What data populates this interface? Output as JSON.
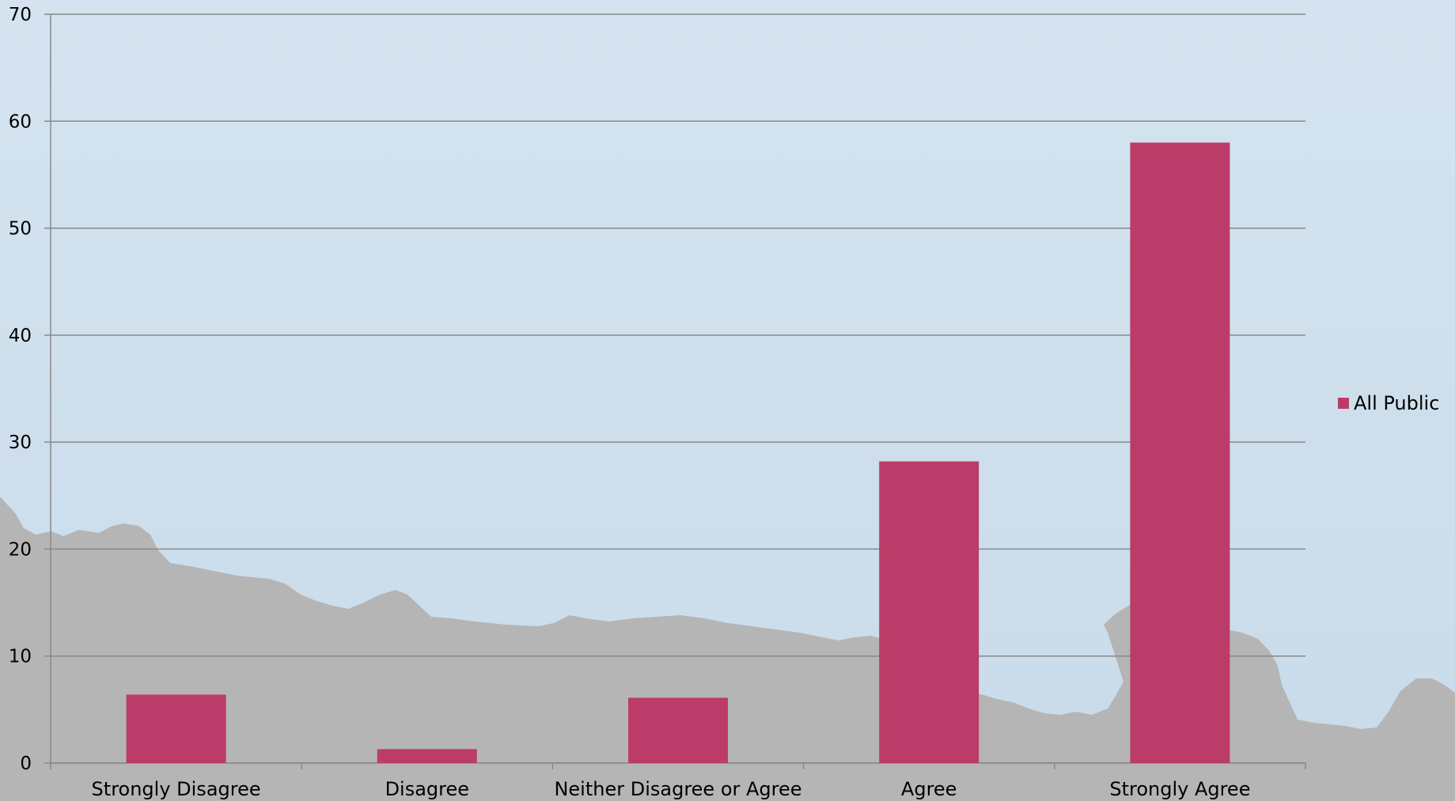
{
  "chart_data": {
    "type": "bar",
    "categories": [
      "Strongly Disagree",
      "Disagree",
      "Neither Disagree or Agree",
      "Agree",
      "Strongly Agree"
    ],
    "series": [
      {
        "name": "All Public",
        "values": [
          6.4,
          1.3,
          6.1,
          28.2,
          58.0
        ]
      }
    ],
    "ylim": [
      0,
      70
    ],
    "yticks": [
      0,
      10,
      20,
      30,
      40,
      50,
      60,
      70
    ],
    "grid": true,
    "legend": "right",
    "title": "",
    "xlabel": "",
    "ylabel": "",
    "bar_color": "#bb3c68",
    "grid_color": "#888888",
    "background_color": "#d3e2ee",
    "silhouette_color": "#b5b5b5"
  },
  "legend": {
    "label": "All Public"
  }
}
